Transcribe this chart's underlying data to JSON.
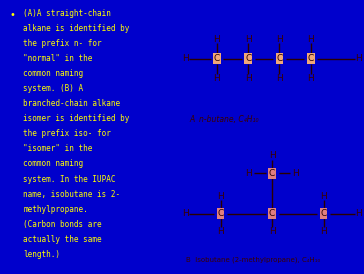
{
  "left_bg": "#0000CC",
  "top_right_bg": "#F0A878",
  "bottom_right_bg": "#E08080",
  "bullet_color": "#FFFF00",
  "text_color": "#3B0000",
  "label_color": "#3B0000",
  "bullet_text_lines": [
    "(A)A straight-chain",
    "alkane is identified by",
    "the prefix n- for",
    "\"normal\" in the",
    "common naming",
    "system. (B) A",
    "branched-chain alkane",
    "isomer is identified by",
    "the prefix iso- for",
    "\"isomer\" in the",
    "common naming",
    "system. In the IUPAC",
    "name, isobutane is 2-",
    "methylpropane.",
    "(Carbon bonds are",
    "actually the same",
    "length.)"
  ],
  "label_A": "A  n-butane, C₄H₁₀",
  "label_B": "B  Isobutane (2-methylpropane), C₄H₁₀",
  "fig_width": 3.64,
  "fig_height": 2.74,
  "dpi": 100
}
